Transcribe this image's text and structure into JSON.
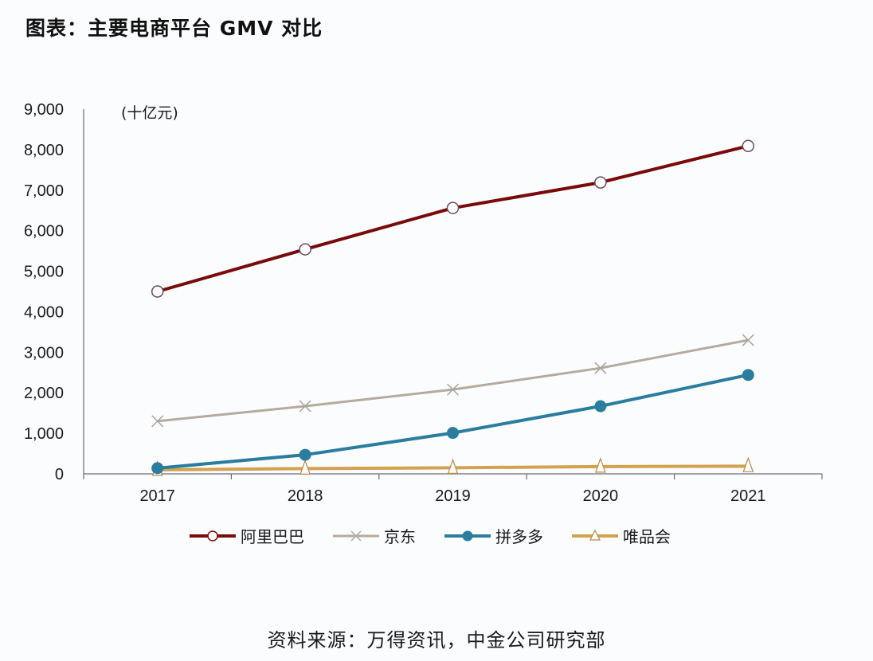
{
  "title": "图表：主要电商平台 GMV 对比",
  "source": "资料来源：万得资讯，中金公司研究部",
  "colors": {
    "alibaba": "#7a0a0a",
    "jd": "#b5ab9c",
    "pdd": "#2a7d9f",
    "vip": "#d3a24f",
    "axis": "#6b6b7a",
    "background": "#fbfcfe"
  },
  "chart_data": {
    "type": "line",
    "title": "图表：主要电商平台 GMV 对比",
    "xlabel": "",
    "ylabel": "(十亿元)",
    "categories": [
      "2017",
      "2018",
      "2019",
      "2020",
      "2021"
    ],
    "ylim": [
      0,
      9000
    ],
    "yticks": [
      0,
      1000,
      2000,
      3000,
      4000,
      5000,
      6000,
      7000,
      8000,
      9000
    ],
    "ytick_labels": [
      "0",
      "1,000",
      "2,000",
      "3,000",
      "4,000",
      "5,000",
      "6,000",
      "7,000",
      "8,000",
      "9,000"
    ],
    "grid": false,
    "legend_position": "bottom",
    "series": [
      {
        "name": "阿里巴巴",
        "key": "alibaba",
        "marker": "open-circle",
        "values": [
          4500,
          5540,
          6560,
          7190,
          8090
        ]
      },
      {
        "name": "京东",
        "key": "jd",
        "marker": "x",
        "values": [
          1300,
          1670,
          2080,
          2610,
          3300
        ]
      },
      {
        "name": "拼多多",
        "key": "pdd",
        "marker": "filled-circle",
        "values": [
          140,
          470,
          1010,
          1670,
          2440
        ]
      },
      {
        "name": "唯品会",
        "key": "vip",
        "marker": "open-triangle",
        "values": [
          100,
          130,
          150,
          180,
          190
        ]
      }
    ]
  }
}
